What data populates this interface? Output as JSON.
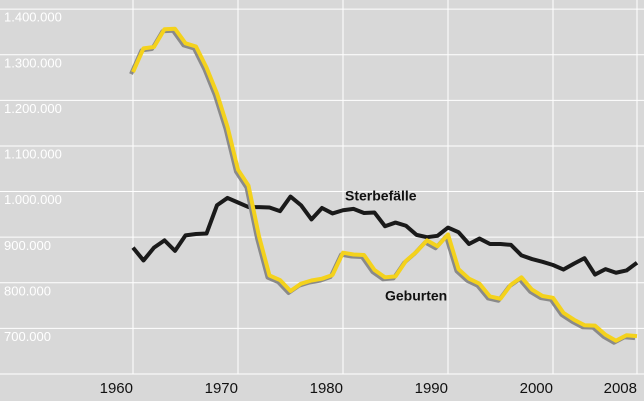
{
  "chart_data": {
    "type": "line",
    "x": [
      1960,
      1961,
      1962,
      1963,
      1964,
      1965,
      1966,
      1967,
      1968,
      1969,
      1970,
      1971,
      1972,
      1973,
      1974,
      1975,
      1976,
      1977,
      1978,
      1979,
      1980,
      1981,
      1982,
      1983,
      1984,
      1985,
      1986,
      1987,
      1988,
      1989,
      1990,
      1991,
      1992,
      1993,
      1994,
      1995,
      1996,
      1997,
      1998,
      1999,
      2000,
      2001,
      2002,
      2003,
      2004,
      2005,
      2006,
      2007,
      2008
    ],
    "series": [
      {
        "name": "Sterbefälle",
        "color": "#1a1a1a",
        "values": [
          877000,
          849000,
          877000,
          893000,
          870000,
          904000,
          907000,
          908000,
          970000,
          986000,
          976000,
          966000,
          966000,
          965000,
          957000,
          989000,
          970000,
          939000,
          964000,
          952000,
          959000,
          962000,
          953000,
          954000,
          924000,
          932000,
          925000,
          905000,
          900000,
          903000,
          921000,
          911000,
          885000,
          897000,
          885000,
          885000,
          883000,
          860000,
          852000,
          846000,
          839000,
          829000,
          842000,
          854000,
          818000,
          830000,
          822000,
          827000,
          844000
        ]
      },
      {
        "name": "Geburten",
        "color": "#f4d21c",
        "values": [
          1262000,
          1314000,
          1317000,
          1356000,
          1357000,
          1325000,
          1318000,
          1272000,
          1215000,
          1142000,
          1048000,
          1013000,
          902000,
          816000,
          806000,
          782000,
          798000,
          805000,
          809000,
          817000,
          866000,
          862000,
          861000,
          828000,
          812000,
          814000,
          848000,
          868000,
          893000,
          880000,
          906000,
          830000,
          809000,
          798000,
          770000,
          765000,
          796000,
          812000,
          785000,
          771000,
          767000,
          734000,
          719000,
          707000,
          706000,
          686000,
          673000,
          685000,
          683000
        ]
      }
    ],
    "xlim": [
      1960,
      2008
    ],
    "xticks": [
      1960,
      1970,
      1980,
      1990,
      2000,
      2008
    ],
    "ylim": [
      600000,
      1420000
    ],
    "yticks": [
      {
        "value": 700000,
        "label": "700.000"
      },
      {
        "value": 800000,
        "label": "800.000"
      },
      {
        "value": 900000,
        "label": "900.000"
      },
      {
        "value": 1000000,
        "label": "1.000.000"
      },
      {
        "value": 1100000,
        "label": "1.100.000"
      },
      {
        "value": 1200000,
        "label": "1.200.000"
      },
      {
        "value": 1300000,
        "label": "1.300.000"
      },
      {
        "value": 1400000,
        "label": "1.400.000"
      }
    ],
    "grid": true
  }
}
